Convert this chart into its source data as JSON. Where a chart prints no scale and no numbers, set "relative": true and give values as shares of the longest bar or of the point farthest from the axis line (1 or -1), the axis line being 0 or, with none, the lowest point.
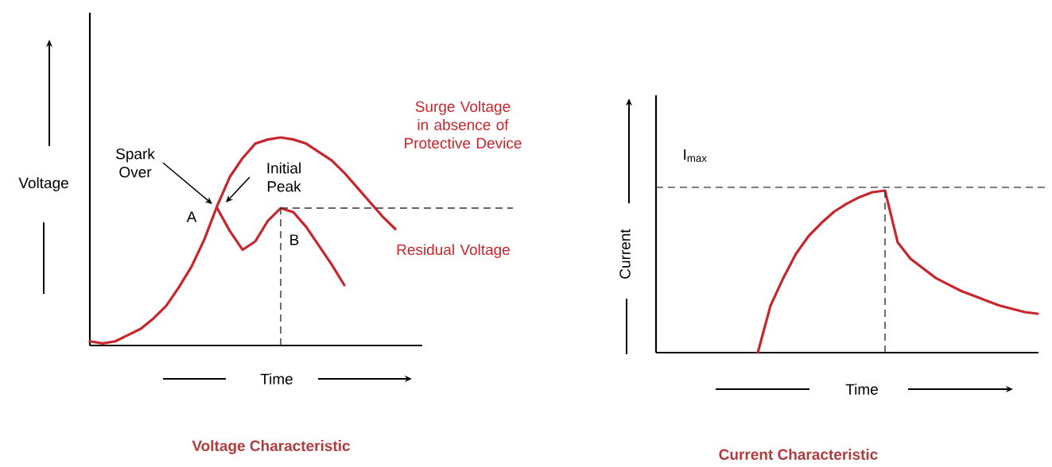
{
  "chart_data": [
    {
      "type": "line",
      "title": "Voltage Characteristic",
      "xlabel": "Time",
      "ylabel": "Voltage",
      "relative": true,
      "categories": [
        null,
        null,
        null,
        null,
        null,
        null,
        null,
        null,
        null,
        null,
        null,
        null,
        null,
        null,
        null,
        null,
        null,
        null,
        null,
        null,
        null,
        null,
        null,
        null,
        null,
        null,
        null
      ],
      "series": [
        {
          "name": "Surge Voltage in absence of Protective Device",
          "color": "#c8262c",
          "values": [
            0.02,
            0.01,
            0.02,
            0.05,
            0.08,
            0.13,
            0.19,
            0.28,
            0.38,
            0.51,
            0.67,
            0.81,
            0.9,
            0.97,
            0.99,
            1,
            0.99,
            0.97,
            0.93,
            0.89,
            0.83,
            0.76,
            0.69,
            0.62,
            0.56,
            null,
            null
          ]
        },
        {
          "name": "Residual Voltage",
          "color": "#c8262c",
          "values": [
            null,
            null,
            null,
            null,
            null,
            null,
            null,
            null,
            null,
            null,
            0.66,
            0.55,
            0.46,
            0.5,
            0.6,
            0.66,
            0.64,
            0.57,
            0.48,
            0.39,
            0.29,
            null,
            null,
            null,
            null,
            null,
            null
          ]
        }
      ],
      "ref_lines": [
        {
          "axis": "y",
          "value": 0.66,
          "line_style": "dashed",
          "color": "#333333"
        }
      ],
      "annotations": [
        "Spark Over",
        "Initial Peak",
        "A",
        "B"
      ]
    },
    {
      "type": "line",
      "title": "Current Characteristic",
      "xlabel": "Time",
      "ylabel": "Current",
      "relative": true,
      "categories": [
        null,
        null,
        null,
        null,
        null,
        null,
        null,
        null,
        null,
        null,
        null,
        null,
        null,
        null,
        null,
        null,
        null,
        null,
        null,
        null,
        null,
        null,
        null,
        null,
        null,
        null,
        null,
        null,
        null,
        null,
        null
      ],
      "series": [
        {
          "color": "#c8262c",
          "values": [
            null,
            null,
            null,
            null,
            null,
            null,
            null,
            null,
            0,
            0.29,
            0.46,
            0.61,
            0.72,
            0.8,
            0.87,
            0.92,
            0.96,
            0.99,
            1,
            0.68,
            0.58,
            0.52,
            0.46,
            0.42,
            0.38,
            0.35,
            0.32,
            0.29,
            0.27,
            0.25,
            0.24
          ]
        }
      ],
      "ref_lines": [
        {
          "axis": "y",
          "value": 1.02,
          "line_style": "dashed",
          "color": "#333333"
        }
      ],
      "annotations": [
        "I$_{max}$"
      ]
    }
  ]
}
